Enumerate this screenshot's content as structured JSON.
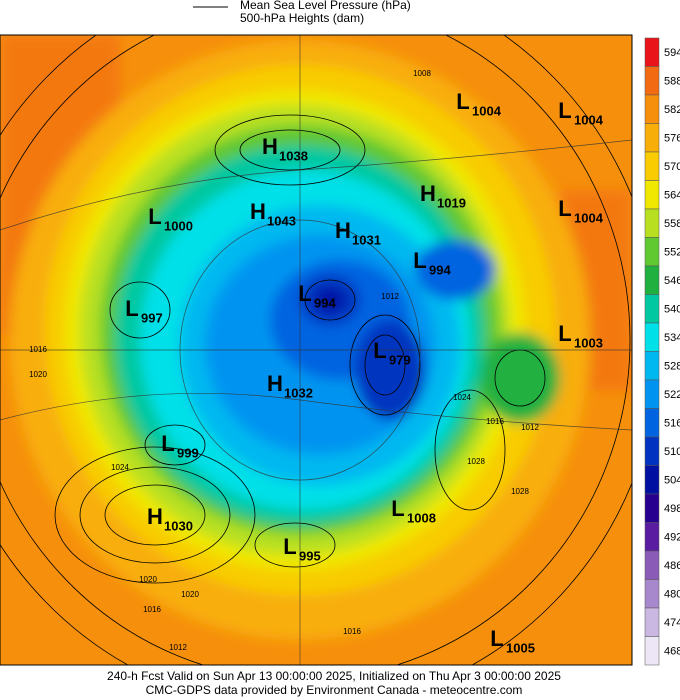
{
  "legend": {
    "lines": [
      "Mean Sea Level Pressure (hPa)",
      "500-hPa Heights (dam)"
    ]
  },
  "colorbar": {
    "ticks": [
      594,
      588,
      582,
      576,
      570,
      564,
      558,
      552,
      546,
      540,
      534,
      528,
      522,
      516,
      510,
      504,
      498,
      492,
      486,
      480,
      474,
      468
    ],
    "colors": [
      "#e8141a",
      "#f26a12",
      "#f6900c",
      "#f8ae08",
      "#f8cc00",
      "#f0e800",
      "#b8e020",
      "#60c830",
      "#20b040",
      "#00c8a0",
      "#00e0e8",
      "#00b8f0",
      "#0094f0",
      "#0064e0",
      "#0034c0",
      "#0010a0",
      "#280090",
      "#5a1ca0",
      "#8a5cb8",
      "#a888cc",
      "#cab8e2",
      "#ece6f6"
    ]
  },
  "centers": [
    {
      "letter": "H",
      "value": 1038
    },
    {
      "letter": "L",
      "value": 1000
    },
    {
      "letter": "H",
      "value": 1043
    },
    {
      "letter": "H",
      "value": 1031
    },
    {
      "letter": "H",
      "value": 1019
    },
    {
      "letter": "L",
      "value": 1004
    },
    {
      "letter": "L",
      "value": 1004
    },
    {
      "letter": "L",
      "value": 1004
    },
    {
      "letter": "L",
      "value": 994
    },
    {
      "letter": "L",
      "value": 994
    },
    {
      "letter": "L",
      "value": 997
    },
    {
      "letter": "L",
      "value": 979
    },
    {
      "letter": "L",
      "value": 1003
    },
    {
      "letter": "H",
      "value": 1032
    },
    {
      "letter": "L",
      "value": 999
    },
    {
      "letter": "H",
      "value": 1030
    },
    {
      "letter": "L",
      "value": 1008
    },
    {
      "letter": "L",
      "value": 995
    },
    {
      "letter": "L",
      "value": 1005
    }
  ],
  "isobar_labels": [
    1008,
    1016,
    1020,
    1024,
    1020,
    1020,
    1016,
    1012,
    1016,
    1024,
    1028,
    1028,
    1016,
    1012,
    1012
  ],
  "footer": [
    "240-h Fcst Valid on Sun Apr 13 00:00:00 2025, Initialized on Thu Apr  3 00:00:00 2025",
    "CMC-GDPS data provided by Environment Canada - meteocentre.com"
  ]
}
